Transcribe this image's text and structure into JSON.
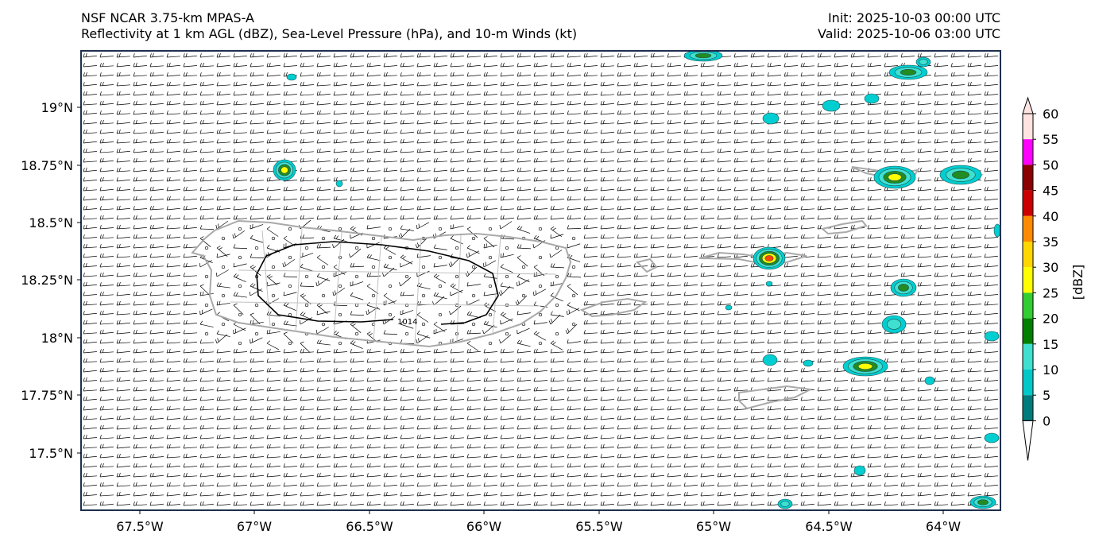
{
  "header": {
    "left_line1": "NSF NCAR 3.75-km MPAS-A",
    "left_line2": "Reflectivity at 1 km AGL (dBZ), Sea-Level Pressure (hPa), and 10-m Winds (kt)",
    "right_line1": "Init: 2025-10-03 00:00 UTC",
    "right_line2": "Valid: 2025-10-06 03:00 UTC"
  },
  "map": {
    "lon_ticks": [
      "67.5°W",
      "67°W",
      "66.5°W",
      "66°W",
      "65.5°W",
      "65°W",
      "64.5°W",
      "64°W"
    ],
    "lat_ticks": [
      "19°N",
      "18.75°N",
      "18.5°N",
      "18.25°N",
      "18°N",
      "17.75°N",
      "17.5°N"
    ],
    "isobar_label": "1014",
    "coastline_color": "#a9a9a9",
    "isobar_color": "#000000"
  },
  "colorbar": {
    "label": "[dBZ]",
    "ticks": [
      "0",
      "5",
      "10",
      "15",
      "20",
      "25",
      "30",
      "35",
      "40",
      "45",
      "50",
      "55",
      "60"
    ],
    "colors": [
      "#ffffff",
      "#007c7c",
      "#00c8c8",
      "#40e0d0",
      "#008000",
      "#32cd32",
      "#ffff00",
      "#ffd700",
      "#ff8c00",
      "#cc0000",
      "#8b0000",
      "#ff00ff",
      "#ffe4e1"
    ]
  }
}
